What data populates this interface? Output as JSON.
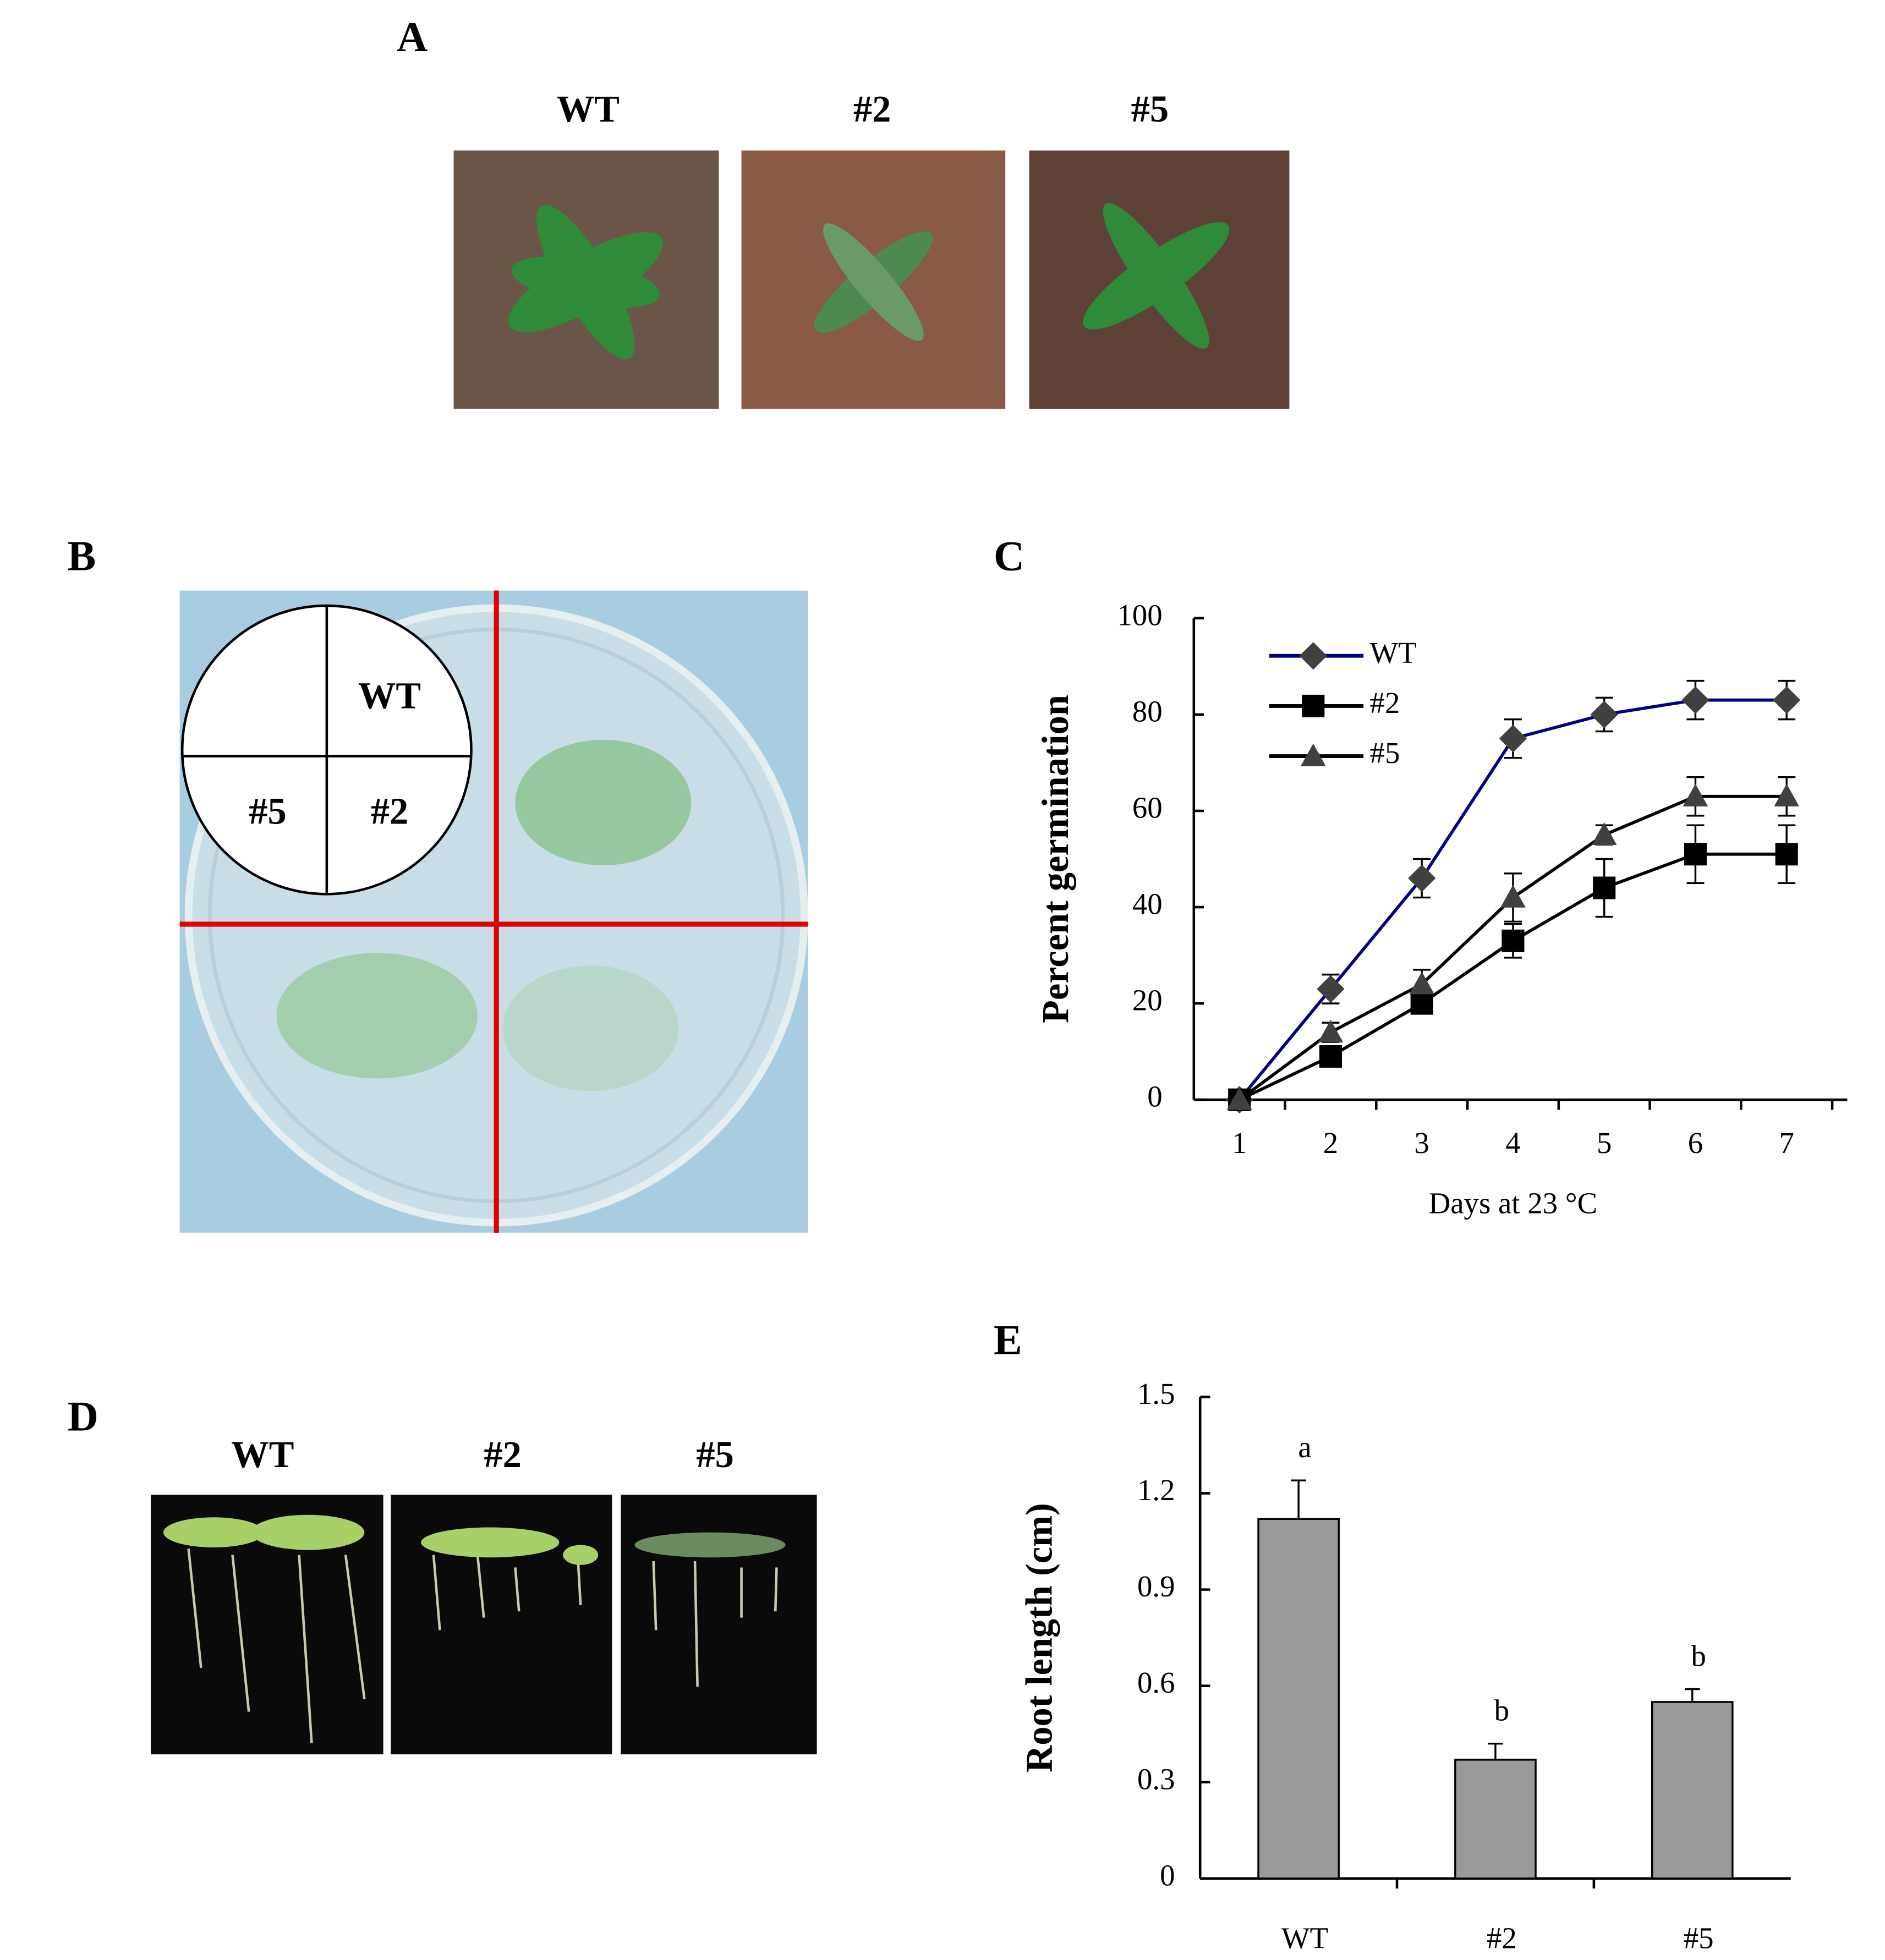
{
  "panels": {
    "A": {
      "label": "A",
      "photo_labels": [
        "WT",
        "#2",
        "#5"
      ]
    },
    "B": {
      "label": "B",
      "quadrant_labels": [
        "WT",
        "#5",
        "#2"
      ]
    },
    "D": {
      "label": "D",
      "photo_labels": [
        "WT",
        "#2",
        "#5"
      ]
    }
  },
  "chart_data": [
    {
      "type": "line",
      "panel_label": "C",
      "x_label": "Days at 23 °C",
      "y_label": "Percent germination",
      "categories": [
        "1",
        "2",
        "3",
        "4",
        "5",
        "6",
        "7"
      ],
      "ylim": [
        0,
        100
      ],
      "yticks": [
        0,
        20,
        40,
        60,
        80,
        100
      ],
      "series": [
        {
          "name": "WT",
          "color": "#000080",
          "marker": "diamond",
          "marker_color": "#404040",
          "values": [
            0,
            23,
            46,
            75,
            80,
            83,
            83
          ],
          "errors": [
            0,
            3,
            4,
            4,
            3.5,
            4,
            4
          ]
        },
        {
          "name": "#2",
          "color": "#000000",
          "marker": "square",
          "marker_color": "#000000",
          "values": [
            0,
            9,
            20,
            33,
            44,
            51,
            51
          ],
          "errors": [
            0,
            2,
            2,
            3.5,
            6,
            6,
            6
          ]
        },
        {
          "name": "#5",
          "color": "#000000",
          "marker": "triangle",
          "marker_color": "#404040",
          "values": [
            0,
            14,
            24,
            42,
            55,
            63,
            63
          ],
          "errors": [
            0,
            2,
            3,
            5,
            2,
            4,
            4
          ]
        }
      ]
    },
    {
      "type": "bar",
      "panel_label": "E",
      "y_label": "Root length (cm)",
      "categories": [
        "WT",
        "#2",
        "#5"
      ],
      "values": [
        1.12,
        0.37,
        0.55
      ],
      "errors": [
        0.12,
        0.05,
        0.04
      ],
      "annotations": [
        "a",
        "b",
        "b"
      ],
      "color": "#999999",
      "ylim": [
        0,
        1.5
      ],
      "yticks": [
        0,
        0.3,
        0.6,
        0.9,
        1.2,
        1.5
      ]
    }
  ]
}
